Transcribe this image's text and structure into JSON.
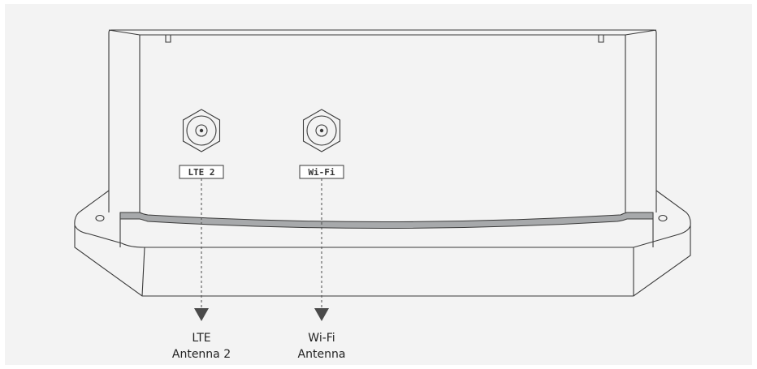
{
  "diagram": {
    "background_color": "#f3f3f3",
    "line_color": "#3a3a3a",
    "seal_color": "#a7a9ab",
    "arrow_color": "#4a4a4a",
    "ports": [
      {
        "id": "lte2",
        "port_label": "LTE 2",
        "antenna_label_line1": "LTE",
        "antenna_label_line2": "Antenna 2"
      },
      {
        "id": "wifi",
        "port_label": "Wi-Fi",
        "antenna_label_line1": "Wi-Fi",
        "antenna_label_line2": "Antenna"
      }
    ]
  }
}
